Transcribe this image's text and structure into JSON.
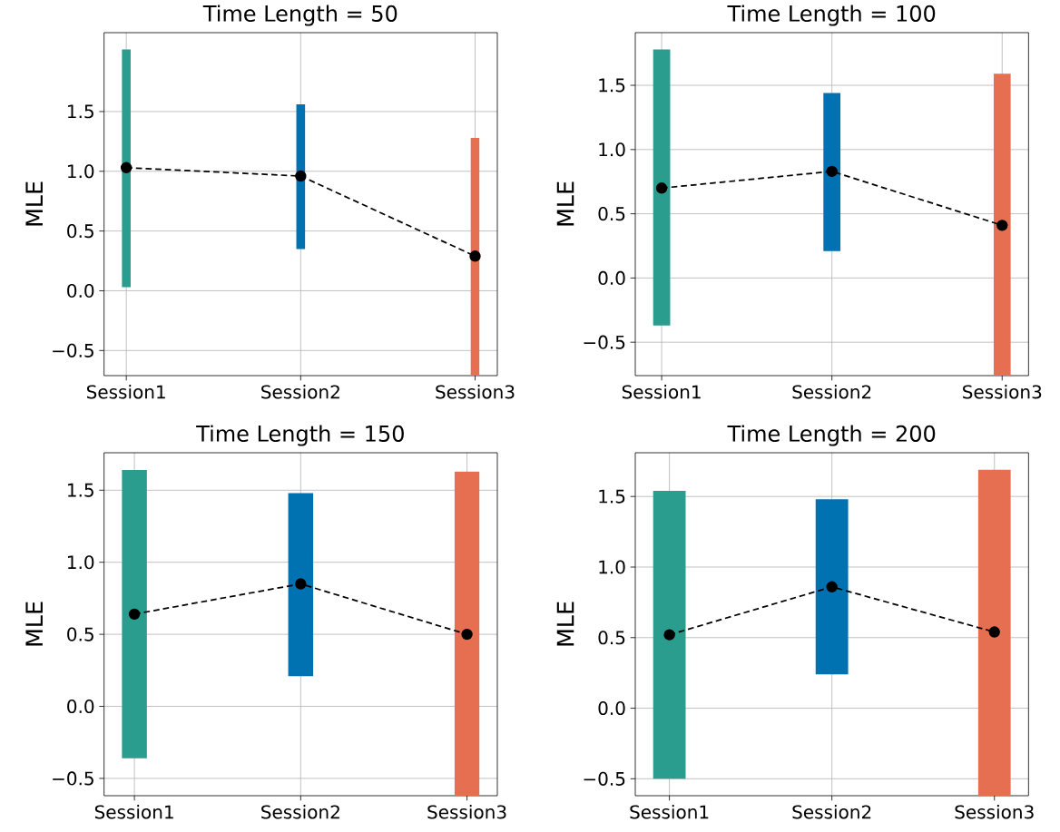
{
  "chart_data": [
    {
      "type": "bar",
      "title": "Time Length = 50",
      "ylabel": "MLE",
      "categories": [
        "Session1",
        "Session2",
        "Session3"
      ],
      "ylim": [
        -0.71,
        2.16
      ],
      "yticks": [
        {
          "value": -0.5,
          "label": "−0.5"
        },
        {
          "value": 0,
          "label": "0.0"
        },
        {
          "value": 0.5,
          "label": "0.5"
        },
        {
          "value": 1,
          "label": "1.0"
        },
        {
          "value": 1.5,
          "label": "1.5"
        }
      ],
      "grid": true,
      "series": [
        {
          "colors": [
            "#2a9d8f",
            "#0072b2",
            "#e76f51"
          ],
          "base": [
            0.03,
            0.35,
            -0.71
          ],
          "values": [
            1.99,
            1.21,
            1.99
          ]
        },
        {
          "type": "line",
          "color": "#000000",
          "marker": "circle",
          "line_style": "dashed",
          "values": [
            1.03,
            0.96,
            0.29
          ]
        }
      ]
    },
    {
      "type": "bar",
      "title": "Time Length = 100",
      "ylabel": "MLE",
      "categories": [
        "Session1",
        "Session2",
        "Session3"
      ],
      "ylim": [
        -0.76,
        1.91
      ],
      "yticks": [
        {
          "value": -0.5,
          "label": "−0.5"
        },
        {
          "value": 0,
          "label": "0.0"
        },
        {
          "value": 0.5,
          "label": "0.5"
        },
        {
          "value": 1,
          "label": "1.0"
        },
        {
          "value": 1.5,
          "label": "1.5"
        }
      ],
      "grid": true,
      "series": [
        {
          "colors": [
            "#2a9d8f",
            "#0072b2",
            "#e76f51"
          ],
          "base": [
            -0.37,
            0.21,
            -0.76
          ],
          "values": [
            2.15,
            1.23,
            2.35
          ]
        },
        {
          "type": "line",
          "color": "#000000",
          "marker": "circle",
          "line_style": "dashed",
          "values": [
            0.7,
            0.83,
            0.41
          ]
        }
      ]
    },
    {
      "type": "bar",
      "title": "Time Length = 150",
      "ylabel": "MLE",
      "categories": [
        "Session1",
        "Session2",
        "Session3"
      ],
      "ylim": [
        -0.62,
        1.76
      ],
      "yticks": [
        {
          "value": -0.5,
          "label": "−0.5"
        },
        {
          "value": 0,
          "label": "0.0"
        },
        {
          "value": 0.5,
          "label": "0.5"
        },
        {
          "value": 1,
          "label": "1.0"
        },
        {
          "value": 1.5,
          "label": "1.5"
        }
      ],
      "grid": true,
      "series": [
        {
          "colors": [
            "#2a9d8f",
            "#0072b2",
            "#e76f51"
          ],
          "base": [
            -0.36,
            0.21,
            -0.62
          ],
          "values": [
            2.0,
            1.27,
            2.25
          ]
        },
        {
          "type": "line",
          "color": "#000000",
          "marker": "circle",
          "line_style": "dashed",
          "values": [
            0.64,
            0.85,
            0.5
          ]
        }
      ]
    },
    {
      "type": "bar",
      "title": "Time Length = 200",
      "ylabel": "MLE",
      "categories": [
        "Session1",
        "Session2",
        "Session3"
      ],
      "ylim": [
        -0.62,
        1.81
      ],
      "yticks": [
        {
          "value": -0.5,
          "label": "−0.5"
        },
        {
          "value": 0,
          "label": "0.0"
        },
        {
          "value": 0.5,
          "label": "0.5"
        },
        {
          "value": 1,
          "label": "1.0"
        },
        {
          "value": 1.5,
          "label": "1.5"
        }
      ],
      "grid": true,
      "series": [
        {
          "colors": [
            "#2a9d8f",
            "#0072b2",
            "#e76f51"
          ],
          "base": [
            -0.5,
            0.24,
            -0.62
          ],
          "values": [
            2.04,
            1.24,
            2.31
          ]
        },
        {
          "type": "line",
          "color": "#000000",
          "marker": "circle",
          "line_style": "dashed",
          "values": [
            0.52,
            0.86,
            0.54
          ]
        }
      ]
    }
  ]
}
